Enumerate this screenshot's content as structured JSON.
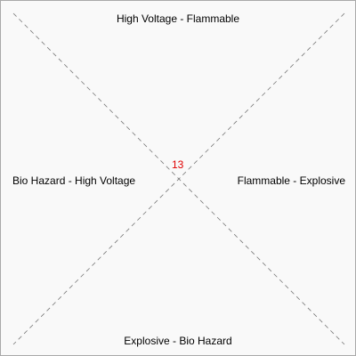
{
  "board": {
    "regions": {
      "top": "High Voltage - Flammable",
      "right": "Flammable - Explosive",
      "bottom": "Explosive - Bio Hazard",
      "left": "Bio Hazard - High Voltage"
    },
    "counter": "13",
    "colors": {
      "background": "#f9f9f9",
      "border": "#a9a9a9",
      "divider": "#777777",
      "counter": "#e00000"
    }
  }
}
